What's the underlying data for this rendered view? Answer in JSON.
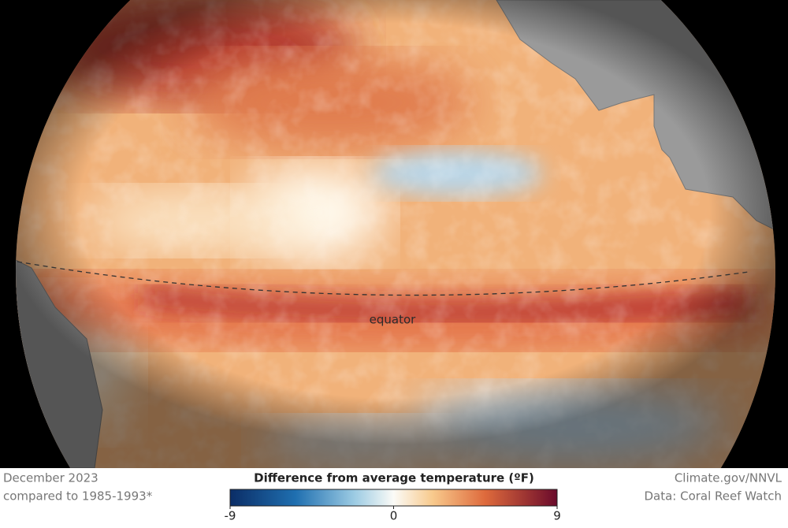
{
  "map": {
    "equator_label": "equator"
  },
  "footer": {
    "date": "December 2023",
    "baseline": "compared to 1985-1993*",
    "credit": "Climate.gov/NNVL",
    "source": "Data: Coral Reef Watch"
  },
  "legend": {
    "title": "Difference from average temperature (ºF)",
    "range": [
      -9,
      9
    ],
    "ticks": [
      -9,
      0,
      9
    ]
  }
}
